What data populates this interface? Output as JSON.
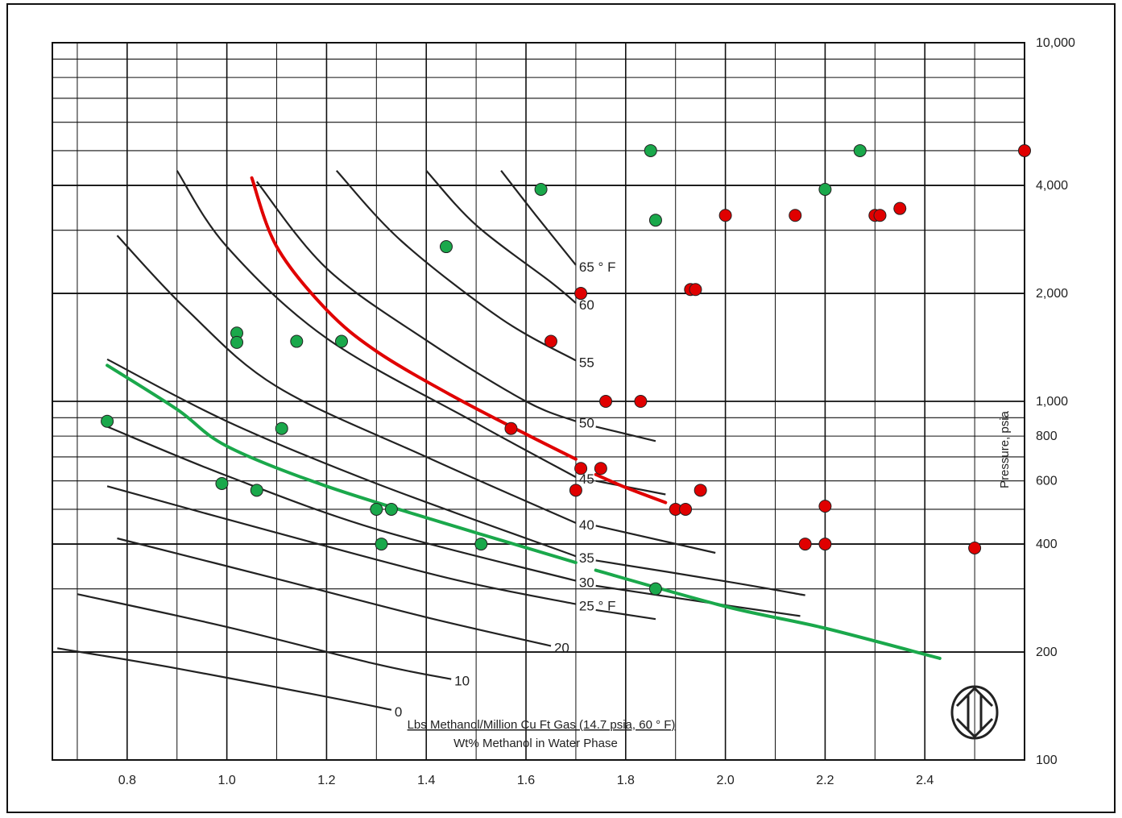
{
  "chart_data": {
    "type": "line",
    "title": "",
    "xlabel": "Lbs Methanol/Million Cu Ft Gas (14.7 psia, 60 ° F)",
    "xlabel2": "Wt% Methanol in Water Phase",
    "ylabel": "Pressure, psia",
    "xlim": [
      0.65,
      2.6
    ],
    "ylim": [
      100,
      10000
    ],
    "y_scale": "log",
    "grid": true,
    "x_ticks": [
      "0.8",
      "1.0",
      "1.2",
      "1.4",
      "1.6",
      "1.8",
      "2.0",
      "2.2",
      "2.4"
    ],
    "y_ticks": [
      {
        "value": 10000,
        "label": "10,000"
      },
      {
        "value": 4000,
        "label": "4,000"
      },
      {
        "value": 2000,
        "label": "2,000"
      },
      {
        "value": 1000,
        "label": "1,000"
      },
      {
        "value": 800,
        "label": "800"
      },
      {
        "value": 600,
        "label": "600"
      },
      {
        "value": 400,
        "label": "400"
      },
      {
        "value": 200,
        "label": "200"
      },
      {
        "value": 100,
        "label": "100"
      }
    ],
    "curves": [
      {
        "label": "0",
        "points": [
          [
            0.66,
            205
          ],
          [
            0.9,
            180
          ],
          [
            1.2,
            150
          ],
          [
            1.33,
            138
          ]
        ],
        "color": "#222"
      },
      {
        "label": "10",
        "points": [
          [
            0.7,
            290
          ],
          [
            1.0,
            235
          ],
          [
            1.3,
            185
          ],
          [
            1.45,
            168
          ]
        ],
        "color": "#222"
      },
      {
        "label": "20",
        "points": [
          [
            0.78,
            415
          ],
          [
            1.1,
            320
          ],
          [
            1.4,
            250
          ],
          [
            1.65,
            208
          ]
        ],
        "color": "#222"
      },
      {
        "label": "25 ° F",
        "points": [
          [
            0.76,
            580
          ],
          [
            1.1,
            430
          ],
          [
            1.45,
            320
          ],
          [
            1.7,
            272
          ]
        ],
        "color": "#222"
      },
      {
        "label": "",
        "points": [
          [
            1.74,
            262
          ],
          [
            1.86,
            247
          ]
        ],
        "color": "#222"
      },
      {
        "label": "30",
        "points": [
          [
            0.76,
            850
          ],
          [
            1.0,
            620
          ],
          [
            1.3,
            440
          ],
          [
            1.7,
            316
          ]
        ],
        "color": "#222"
      },
      {
        "label": "",
        "points": [
          [
            1.74,
            306
          ],
          [
            2.0,
            270
          ],
          [
            2.15,
            252
          ]
        ],
        "color": "#222"
      },
      {
        "label": "35",
        "points": [
          [
            0.76,
            1310
          ],
          [
            1.0,
            880
          ],
          [
            1.3,
            590
          ],
          [
            1.7,
            370
          ]
        ],
        "color": "#222"
      },
      {
        "label": "",
        "points": [
          [
            1.74,
            360
          ],
          [
            2.0,
            315
          ],
          [
            2.16,
            288
          ]
        ],
        "color": "#222"
      },
      {
        "label": "40",
        "points": [
          [
            0.78,
            2900
          ],
          [
            0.92,
            1800
          ],
          [
            1.1,
            1100
          ],
          [
            1.4,
            700
          ],
          [
            1.7,
            458
          ]
        ],
        "color": "#222"
      },
      {
        "label": "",
        "points": [
          [
            1.74,
            450
          ],
          [
            1.98,
            378
          ]
        ],
        "color": "#222"
      },
      {
        "label": "45",
        "points": [
          [
            0.9,
            4400
          ],
          [
            1.0,
            2700
          ],
          [
            1.2,
            1500
          ],
          [
            1.5,
            870
          ],
          [
            1.7,
            615
          ]
        ],
        "color": "#222"
      },
      {
        "label": "",
        "points": [
          [
            1.74,
            600
          ],
          [
            1.88,
            550
          ]
        ],
        "color": "#222"
      },
      {
        "label": "50",
        "points": [
          [
            1.06,
            4100
          ],
          [
            1.2,
            2350
          ],
          [
            1.4,
            1480
          ],
          [
            1.6,
            1000
          ],
          [
            1.7,
            880
          ]
        ],
        "color": "#222"
      },
      {
        "label": "",
        "points": [
          [
            1.74,
            850
          ],
          [
            1.86,
            775
          ]
        ],
        "color": "#222"
      },
      {
        "label": "55",
        "points": [
          [
            1.22,
            4400
          ],
          [
            1.35,
            2800
          ],
          [
            1.55,
            1700
          ],
          [
            1.7,
            1300
          ]
        ],
        "color": "#222"
      },
      {
        "label": "60",
        "points": [
          [
            1.4,
            4400
          ],
          [
            1.5,
            3100
          ],
          [
            1.65,
            2150
          ],
          [
            1.7,
            1880
          ]
        ],
        "color": "#222"
      },
      {
        "label": "65 ° F",
        "points": [
          [
            1.55,
            4400
          ],
          [
            1.62,
            3300
          ],
          [
            1.7,
            2400
          ]
        ],
        "color": "#222"
      }
    ],
    "fit_lines": [
      {
        "color": "#e00000",
        "points": [
          [
            1.05,
            4200
          ],
          [
            1.1,
            2700
          ],
          [
            1.2,
            1800
          ],
          [
            1.3,
            1380
          ],
          [
            1.45,
            1040
          ],
          [
            1.6,
            810
          ],
          [
            1.7,
            690
          ]
        ]
      },
      {
        "color": "#e00000",
        "points": [
          [
            1.74,
            625
          ],
          [
            1.8,
            575
          ],
          [
            1.88,
            522
          ]
        ]
      },
      {
        "color": "#1aa84b",
        "points": [
          [
            0.76,
            1260
          ],
          [
            0.9,
            950
          ],
          [
            1.0,
            750
          ],
          [
            1.2,
            580
          ],
          [
            1.5,
            430
          ],
          [
            1.7,
            355
          ]
        ]
      },
      {
        "color": "#1aa84b",
        "points": [
          [
            1.74,
            338
          ],
          [
            2.0,
            268
          ],
          [
            2.2,
            233
          ],
          [
            2.43,
            192
          ]
        ]
      }
    ],
    "series": [
      {
        "name": "",
        "color": "#1aa84b",
        "points": [
          [
            0.76,
            880
          ],
          [
            0.99,
            590
          ],
          [
            1.02,
            1550
          ],
          [
            1.02,
            1460
          ],
          [
            1.06,
            565
          ],
          [
            1.11,
            840
          ],
          [
            1.14,
            1470
          ],
          [
            1.23,
            1470
          ],
          [
            1.3,
            500
          ],
          [
            1.31,
            400
          ],
          [
            1.33,
            500
          ],
          [
            1.44,
            2700
          ],
          [
            1.51,
            400
          ],
          [
            1.63,
            3900
          ],
          [
            1.85,
            5000
          ],
          [
            1.86,
            3200
          ],
          [
            1.86,
            300
          ],
          [
            2.2,
            3900
          ],
          [
            2.27,
            5000
          ]
        ]
      },
      {
        "name": "",
        "color": "#e00000",
        "points": [
          [
            1.57,
            840
          ],
          [
            1.65,
            1470
          ],
          [
            1.7,
            565
          ],
          [
            1.71,
            2000
          ],
          [
            1.71,
            650
          ],
          [
            1.75,
            650
          ],
          [
            1.76,
            1000
          ],
          [
            1.83,
            1000
          ],
          [
            1.9,
            500
          ],
          [
            1.92,
            500
          ],
          [
            1.93,
            2050
          ],
          [
            1.94,
            2050
          ],
          [
            1.95,
            565
          ],
          [
            2.0,
            3300
          ],
          [
            2.14,
            3300
          ],
          [
            2.16,
            400
          ],
          [
            2.2,
            400
          ],
          [
            2.2,
            510
          ],
          [
            2.3,
            3300
          ],
          [
            2.31,
            3300
          ],
          [
            2.35,
            3450
          ],
          [
            2.5,
            390
          ],
          [
            2.6,
            5000
          ]
        ]
      }
    ]
  }
}
